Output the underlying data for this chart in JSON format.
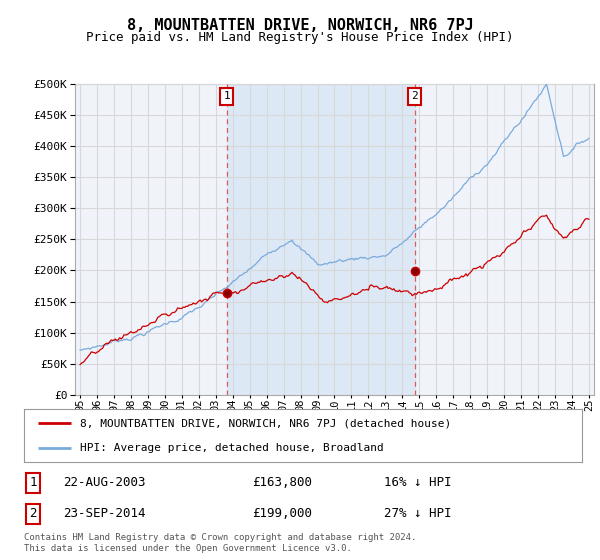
{
  "title": "8, MOUNTBATTEN DRIVE, NORWICH, NR6 7PJ",
  "subtitle": "Price paid vs. HM Land Registry's House Price Index (HPI)",
  "title_fontsize": 11,
  "subtitle_fontsize": 9,
  "background_color": "#ffffff",
  "plot_bg_color": "#f0f4fa",
  "shaded_region_color": "#dce8f5",
  "grid_color": "#d8d8d8",
  "hpi_color": "#7aaadd",
  "price_color": "#cc0000",
  "vline_color": "#dd4444",
  "marker1_year": 2003.65,
  "marker2_year": 2014.73,
  "sale1_price_val": 163800,
  "sale2_price_val": 199000,
  "sale1_date": "22-AUG-2003",
  "sale1_price": "£163,800",
  "sale1_hpi": "16% ↓ HPI",
  "sale2_date": "23-SEP-2014",
  "sale2_price": "£199,000",
  "sale2_hpi": "27% ↓ HPI",
  "legend1": "8, MOUNTBATTEN DRIVE, NORWICH, NR6 7PJ (detached house)",
  "legend2": "HPI: Average price, detached house, Broadland",
  "footer1": "Contains HM Land Registry data © Crown copyright and database right 2024.",
  "footer2": "This data is licensed under the Open Government Licence v3.0.",
  "ylim_min": 0,
  "ylim_max": 500000,
  "yticks": [
    0,
    50000,
    100000,
    150000,
    200000,
    250000,
    300000,
    350000,
    400000,
    450000,
    500000
  ],
  "xstart": 1995,
  "xend": 2025
}
